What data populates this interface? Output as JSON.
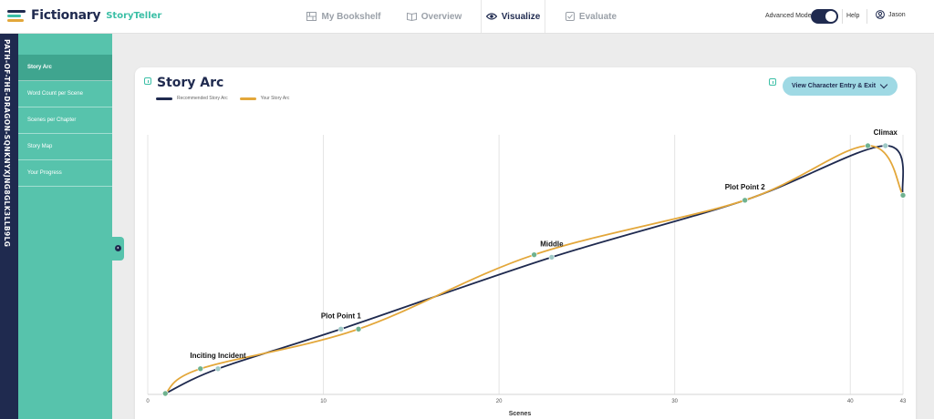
{
  "app": {
    "name": "Fictionary",
    "product": "StoryTeller"
  },
  "nav": [
    {
      "label": "My Bookshelf",
      "icon": "bookshelf-icon",
      "active": false
    },
    {
      "label": "Overview",
      "icon": "book-open-icon",
      "active": false
    },
    {
      "label": "Visualize",
      "icon": "eye-icon",
      "active": true
    },
    {
      "label": "Evaluate",
      "icon": "checkbox-icon",
      "active": false
    }
  ],
  "header": {
    "advanced_mode_label": "Advanced Mode",
    "advanced_mode_on": true,
    "help_label": "Help",
    "user_name": "Jason"
  },
  "project": {
    "id": "PATH-OF-THE-DRAGON-SQNKNYXJNG8GLK3LLB9LG"
  },
  "sidebar": {
    "items": [
      {
        "label": "Story Arc",
        "active": true
      },
      {
        "label": "Word Count per Scene",
        "active": false
      },
      {
        "label": "Scenes per Chapter",
        "active": false
      },
      {
        "label": "Story Map",
        "active": false
      },
      {
        "label": "Your Progress",
        "active": false
      }
    ]
  },
  "main": {
    "title": "Story Arc",
    "view_button_label": "View Character Entry & Exit"
  },
  "colors": {
    "recommended": "#1f2a4f",
    "yours": "#e3a73a",
    "accent": "#57c3ac",
    "marker": "#7ab8a3"
  },
  "chart_data": {
    "type": "line",
    "title": "",
    "xlabel": "Scenes",
    "ylabel": "",
    "xlim": [
      0,
      43
    ],
    "ylim": [
      0,
      100
    ],
    "x_ticks": [
      0,
      10,
      20,
      30,
      40,
      43
    ],
    "grid": true,
    "legend": "top-left",
    "series": [
      {
        "name": "Recommended Story Arc",
        "color": "#1f2a4f",
        "x": [
          1,
          4,
          11,
          23,
          34,
          42,
          43
        ],
        "y": [
          0,
          10,
          26,
          55,
          78,
          100,
          80
        ],
        "knots": [
          1,
          4,
          11,
          23,
          34,
          42,
          43
        ]
      },
      {
        "name": "Your Story Arc",
        "color": "#e3a73a",
        "x": [
          1,
          3,
          12,
          22,
          34,
          41,
          43
        ],
        "y": [
          0,
          10,
          26,
          56,
          78,
          100,
          80
        ],
        "knots": [
          1,
          3,
          12,
          22,
          34,
          41,
          43
        ]
      }
    ],
    "annotations": [
      {
        "text": "Inciting Incident",
        "x": 4,
        "y": 10
      },
      {
        "text": "Plot Point 1",
        "x": 11,
        "y": 26
      },
      {
        "text": "Middle",
        "x": 23,
        "y": 55
      },
      {
        "text": "Plot Point 2",
        "x": 34,
        "y": 78
      },
      {
        "text": "Climax",
        "x": 42,
        "y": 100
      }
    ]
  }
}
